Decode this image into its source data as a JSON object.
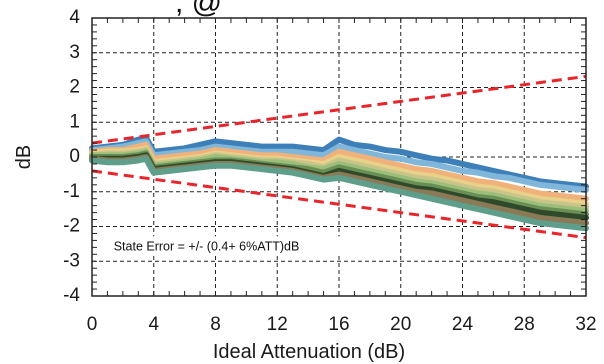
{
  "chart_data": {
    "type": "line",
    "title": "",
    "xlabel": "Ideal Attenuation (dB)",
    "ylabel": "dB",
    "xlim": [
      0,
      32
    ],
    "ylim": [
      -4,
      4
    ],
    "x_ticks": [
      0,
      4,
      8,
      12,
      16,
      20,
      24,
      28,
      32
    ],
    "y_ticks": [
      4,
      3,
      2,
      1,
      0,
      -1,
      -2,
      -3,
      -4
    ],
    "x_tick_labels": [
      "0",
      "4",
      "8",
      "12",
      "16",
      "20",
      "24",
      "28",
      "32"
    ],
    "y_tick_labels": [
      "4",
      "3",
      "2",
      "1",
      "0",
      "-1",
      "-2",
      "-3",
      "-4"
    ],
    "grid": true,
    "annotation": "State Error = +/- (0.4+ 6%ATT)dB",
    "top_partial_text": ", @",
    "limit_lines": {
      "color": "#e8252a",
      "upper": {
        "x": [
          0,
          32
        ],
        "y": [
          0.4,
          2.32
        ]
      },
      "lower": {
        "x": [
          0,
          32
        ],
        "y": [
          -0.4,
          -2.32
        ]
      }
    },
    "series_colors": [
      "#3d7fb8",
      "#7fb6d9",
      "#f0b27a",
      "#e8d28a",
      "#c9c48a",
      "#9bbf7a",
      "#6a8f55",
      "#2f4a2a",
      "#8a7a55",
      "#5e9e8a"
    ],
    "series": [
      {
        "x": [
          0,
          1,
          2,
          3,
          3.5,
          4,
          5,
          6,
          7,
          8,
          9,
          10,
          11,
          12,
          13,
          14,
          15,
          16,
          17,
          18,
          19,
          20,
          21,
          22,
          23,
          24,
          25,
          26,
          27,
          28,
          29,
          30,
          31,
          32
        ],
        "y": [
          0.25,
          0.3,
          0.35,
          0.5,
          0.55,
          0.15,
          0.2,
          0.25,
          0.35,
          0.45,
          0.4,
          0.35,
          0.3,
          0.3,
          0.3,
          0.25,
          0.2,
          0.5,
          0.35,
          0.3,
          0.2,
          0.15,
          0.05,
          -0.05,
          -0.1,
          -0.2,
          -0.3,
          -0.4,
          -0.5,
          -0.6,
          -0.7,
          -0.75,
          -0.8,
          -0.85
        ]
      },
      {
        "x": [
          0,
          1,
          2,
          3,
          3.5,
          4,
          5,
          6,
          7,
          8,
          9,
          10,
          11,
          12,
          13,
          14,
          15,
          16,
          17,
          18,
          19,
          20,
          21,
          22,
          23,
          24,
          25,
          26,
          27,
          28,
          29,
          30,
          31,
          32
        ],
        "y": [
          0.2,
          0.25,
          0.3,
          0.4,
          0.45,
          0.05,
          0.1,
          0.15,
          0.2,
          0.3,
          0.25,
          0.2,
          0.15,
          0.15,
          0.15,
          0.1,
          0.05,
          0.3,
          0.2,
          0.1,
          0.0,
          -0.05,
          -0.15,
          -0.2,
          -0.3,
          -0.4,
          -0.45,
          -0.55,
          -0.6,
          -0.7,
          -0.8,
          -0.85,
          -0.9,
          -0.95
        ]
      },
      {
        "x": [
          0,
          1,
          2,
          3,
          3.5,
          4,
          5,
          6,
          7,
          8,
          9,
          10,
          11,
          12,
          13,
          14,
          15,
          16,
          17,
          18,
          19,
          20,
          21,
          22,
          23,
          24,
          25,
          26,
          27,
          28,
          29,
          30,
          31,
          32
        ],
        "y": [
          0.15,
          0.2,
          0.2,
          0.3,
          0.35,
          -0.05,
          0.0,
          0.05,
          0.1,
          0.2,
          0.15,
          0.1,
          0.05,
          0.05,
          0.0,
          -0.05,
          -0.1,
          0.15,
          0.05,
          -0.05,
          -0.15,
          -0.25,
          -0.35,
          -0.4,
          -0.5,
          -0.6,
          -0.7,
          -0.75,
          -0.85,
          -0.95,
          -1.05,
          -1.1,
          -1.15,
          -1.2
        ]
      },
      {
        "x": [
          0,
          1,
          2,
          3,
          3.5,
          4,
          5,
          6,
          7,
          8,
          9,
          10,
          11,
          12,
          13,
          14,
          15,
          16,
          17,
          18,
          19,
          20,
          21,
          22,
          23,
          24,
          25,
          26,
          27,
          28,
          29,
          30,
          31,
          32
        ],
        "y": [
          0.1,
          0.15,
          0.15,
          0.2,
          0.25,
          -0.15,
          -0.1,
          -0.05,
          0.0,
          0.1,
          0.05,
          0.0,
          -0.05,
          -0.05,
          -0.1,
          -0.15,
          -0.2,
          0.0,
          -0.1,
          -0.2,
          -0.3,
          -0.4,
          -0.5,
          -0.55,
          -0.65,
          -0.75,
          -0.85,
          -0.9,
          -1.0,
          -1.1,
          -1.2,
          -1.25,
          -1.3,
          -1.35
        ]
      },
      {
        "x": [
          0,
          1,
          2,
          3,
          3.5,
          4,
          5,
          6,
          7,
          8,
          9,
          10,
          11,
          12,
          13,
          14,
          15,
          16,
          17,
          18,
          19,
          20,
          21,
          22,
          23,
          24,
          25,
          26,
          27,
          28,
          29,
          30,
          31,
          32
        ],
        "y": [
          0.05,
          0.1,
          0.1,
          0.15,
          0.2,
          -0.2,
          -0.15,
          -0.1,
          -0.05,
          0.05,
          0.0,
          -0.05,
          -0.1,
          -0.1,
          -0.15,
          -0.2,
          -0.3,
          -0.1,
          -0.2,
          -0.3,
          -0.4,
          -0.5,
          -0.6,
          -0.65,
          -0.75,
          -0.85,
          -0.95,
          -1.0,
          -1.1,
          -1.2,
          -1.3,
          -1.35,
          -1.4,
          -1.45
        ]
      },
      {
        "x": [
          0,
          1,
          2,
          3,
          3.5,
          4,
          5,
          6,
          7,
          8,
          9,
          10,
          11,
          12,
          13,
          14,
          15,
          16,
          17,
          18,
          19,
          20,
          21,
          22,
          23,
          24,
          25,
          26,
          27,
          28,
          29,
          30,
          31,
          32
        ],
        "y": [
          0.05,
          0.05,
          0.05,
          0.1,
          0.15,
          -0.25,
          -0.2,
          -0.15,
          -0.1,
          0.0,
          -0.05,
          -0.1,
          -0.15,
          -0.15,
          -0.2,
          -0.3,
          -0.35,
          -0.2,
          -0.3,
          -0.4,
          -0.5,
          -0.6,
          -0.7,
          -0.75,
          -0.85,
          -0.95,
          -1.05,
          -1.1,
          -1.2,
          -1.3,
          -1.4,
          -1.45,
          -1.5,
          -1.55
        ]
      },
      {
        "x": [
          0,
          1,
          2,
          3,
          3.5,
          4,
          5,
          6,
          7,
          8,
          9,
          10,
          11,
          12,
          13,
          14,
          15,
          16,
          17,
          18,
          19,
          20,
          21,
          22,
          23,
          24,
          25,
          26,
          27,
          28,
          29,
          30,
          31,
          32
        ],
        "y": [
          0.0,
          0.0,
          0.0,
          0.05,
          0.1,
          -0.3,
          -0.25,
          -0.2,
          -0.15,
          -0.1,
          -0.1,
          -0.15,
          -0.2,
          -0.25,
          -0.3,
          -0.35,
          -0.45,
          -0.3,
          -0.4,
          -0.5,
          -0.6,
          -0.7,
          -0.8,
          -0.85,
          -0.95,
          -1.05,
          -1.15,
          -1.2,
          -1.3,
          -1.4,
          -1.5,
          -1.55,
          -1.6,
          -1.65
        ]
      },
      {
        "x": [
          0,
          1,
          2,
          3,
          3.5,
          4,
          5,
          6,
          7,
          8,
          9,
          10,
          11,
          12,
          13,
          14,
          15,
          16,
          17,
          18,
          19,
          20,
          21,
          22,
          23,
          24,
          25,
          26,
          27,
          28,
          29,
          30,
          31,
          32
        ],
        "y": [
          -0.05,
          -0.05,
          -0.05,
          0.0,
          0.05,
          -0.35,
          -0.3,
          -0.25,
          -0.2,
          -0.15,
          -0.15,
          -0.2,
          -0.25,
          -0.3,
          -0.35,
          -0.45,
          -0.55,
          -0.4,
          -0.5,
          -0.6,
          -0.7,
          -0.8,
          -0.9,
          -0.95,
          -1.05,
          -1.15,
          -1.25,
          -1.3,
          -1.4,
          -1.5,
          -1.6,
          -1.65,
          -1.7,
          -1.75
        ]
      },
      {
        "x": [
          0,
          1,
          2,
          3,
          3.5,
          4,
          5,
          6,
          7,
          8,
          9,
          10,
          11,
          12,
          13,
          14,
          15,
          16,
          17,
          18,
          19,
          20,
          21,
          22,
          23,
          24,
          25,
          26,
          27,
          28,
          29,
          30,
          31,
          32
        ],
        "y": [
          -0.05,
          -0.1,
          -0.1,
          -0.05,
          0.0,
          -0.4,
          -0.35,
          -0.3,
          -0.25,
          -0.2,
          -0.2,
          -0.25,
          -0.3,
          -0.35,
          -0.4,
          -0.5,
          -0.6,
          -0.5,
          -0.6,
          -0.7,
          -0.8,
          -0.9,
          -1.0,
          -1.05,
          -1.15,
          -1.25,
          -1.35,
          -1.45,
          -1.55,
          -1.65,
          -1.75,
          -1.8,
          -1.85,
          -1.9
        ]
      },
      {
        "x": [
          0,
          1,
          2,
          3,
          3.5,
          4,
          5,
          6,
          7,
          8,
          9,
          10,
          11,
          12,
          13,
          14,
          15,
          16,
          17,
          18,
          19,
          20,
          21,
          22,
          23,
          24,
          25,
          26,
          27,
          28,
          29,
          30,
          31,
          32
        ],
        "y": [
          -0.1,
          -0.15,
          -0.15,
          -0.1,
          -0.05,
          -0.45,
          -0.4,
          -0.35,
          -0.3,
          -0.25,
          -0.25,
          -0.3,
          -0.35,
          -0.4,
          -0.45,
          -0.55,
          -0.65,
          -0.6,
          -0.7,
          -0.8,
          -0.9,
          -1.0,
          -1.1,
          -1.2,
          -1.3,
          -1.4,
          -1.5,
          -1.6,
          -1.7,
          -1.8,
          -1.9,
          -1.95,
          -2.0,
          -2.05
        ]
      }
    ]
  }
}
